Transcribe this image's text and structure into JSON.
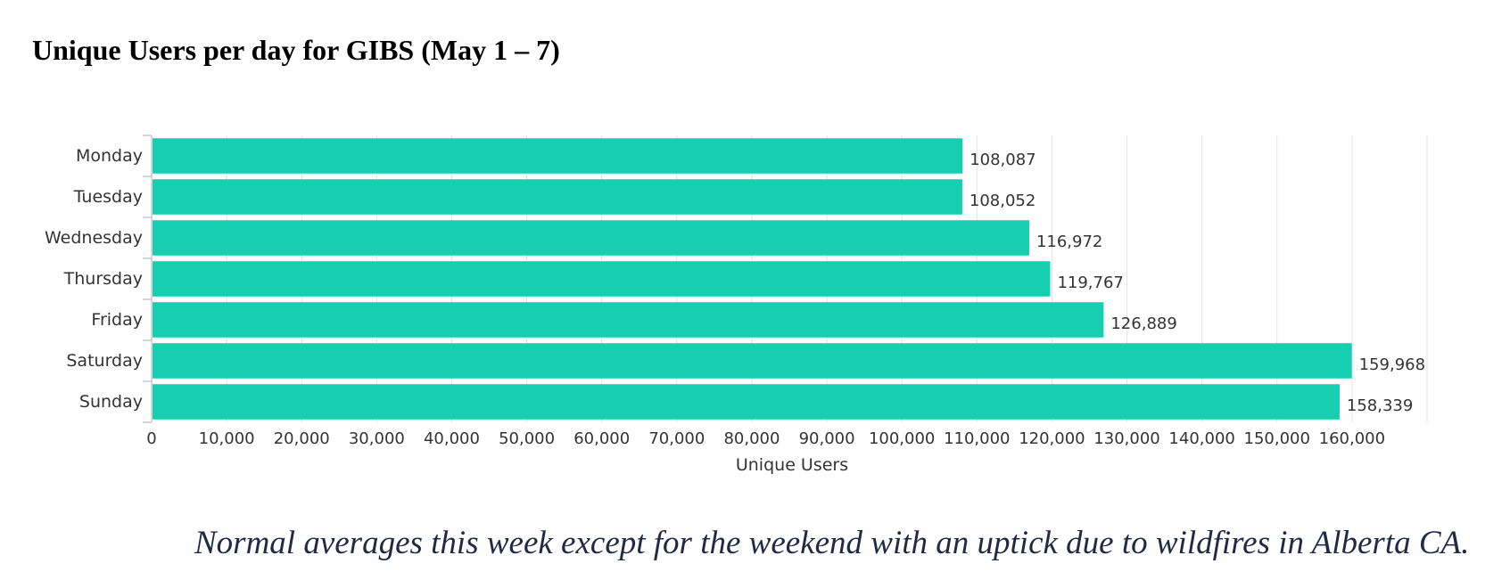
{
  "page": {
    "title": "Unique Users per day for GIBS (May 1 – 7)",
    "caption": "Normal averages this week except for the weekend with an uptick due to wildfires in Alberta CA."
  },
  "chart_data": {
    "type": "bar",
    "orientation": "horizontal",
    "title": "",
    "xlabel": "Unique Users",
    "ylabel": "",
    "categories": [
      "Monday",
      "Tuesday",
      "Wednesday",
      "Thursday",
      "Friday",
      "Saturday",
      "Sunday"
    ],
    "values": [
      108087,
      108052,
      116972,
      119767,
      126889,
      159968,
      158339
    ],
    "data_labels": [
      "108,087",
      "108,052",
      "116,972",
      "119,767",
      "126,889",
      "159,968",
      "158,339"
    ],
    "xlim": [
      0,
      170000
    ],
    "x_ticks": [
      0,
      10000,
      20000,
      30000,
      40000,
      50000,
      60000,
      70000,
      80000,
      90000,
      100000,
      110000,
      120000,
      130000,
      140000,
      150000,
      160000
    ],
    "x_tick_labels": [
      "0",
      "10,000",
      "20,000",
      "30,000",
      "40,000",
      "50,000",
      "60,000",
      "70,000",
      "80,000",
      "90,000",
      "100,000",
      "110,000",
      "120,000",
      "130,000",
      "140,000",
      "150,000",
      "160,000"
    ],
    "grid": true,
    "legend": "none",
    "bar_color": "#16cfb0",
    "grid_color": "#e3e3e3",
    "axis_color": "#c9c9c9",
    "text_color": "#333333"
  }
}
